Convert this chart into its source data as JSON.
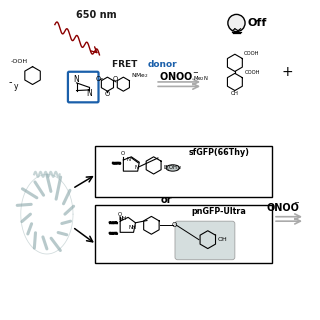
{
  "background_color": "#ffffff",
  "fig_width": 3.2,
  "fig_height": 3.2,
  "dpi": 100,
  "top_label_650nm": "650 nm",
  "off_label": "Off",
  "or_label": "or",
  "sfgfp_label": "sfGFP(66Thy)",
  "pngfp_label": "pnGFP-Ultra",
  "blue_box_color": "#1a5faa",
  "text_color_black": "#000000",
  "text_color_blue": "#1a5faa",
  "text_color_dark": "#1a1a1a",
  "wave_color": "#8b0000",
  "structure_color": "#a0b8ba",
  "arrow_gray": "#aaaaaa",
  "box_gray": "#c8d4d4"
}
